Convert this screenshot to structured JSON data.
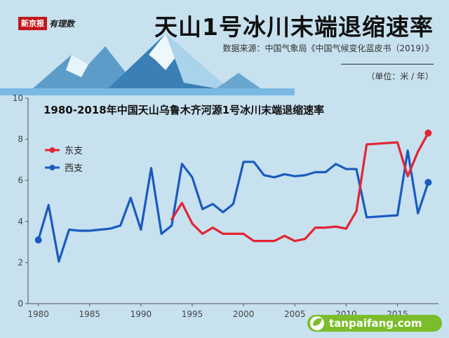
{
  "header": {
    "logo_text": "新京报",
    "logo_tail": "有理数",
    "title": "天山1号冰川末端退缩速率",
    "source": "数据来源：中国气象局《中国气候变化蓝皮书（2019）》",
    "units": "（单位：米 / 年）"
  },
  "watermark": {
    "text": "tanpaifang.com"
  },
  "colors": {
    "east": "#e32434",
    "west": "#1a5bbf",
    "background": "#c7e1ef"
  },
  "chart_data": {
    "type": "line",
    "title": "1980-2018年中国天山乌鲁木齐河源1号冰川末端退缩速率",
    "xlabel": "",
    "ylabel": "",
    "xlim": [
      1979,
      2019
    ],
    "ylim": [
      0,
      10
    ],
    "x_ticks": [
      1980,
      1985,
      1990,
      1995,
      2000,
      2005,
      2010,
      2015
    ],
    "y_ticks": [
      0,
      2,
      4,
      6,
      8,
      10
    ],
    "grid": false,
    "legend_position": "upper-left",
    "series": [
      {
        "name": "东支",
        "color": "#e32434",
        "x": [
          1993,
          1994,
          1995,
          1996,
          1997,
          1998,
          1999,
          2000,
          2001,
          2002,
          2003,
          2004,
          2005,
          2006,
          2007,
          2008,
          2009,
          2010,
          2011,
          2012,
          2015,
          2016,
          2017,
          2018
        ],
        "y": [
          4.1,
          4.9,
          3.9,
          3.4,
          3.7,
          3.4,
          3.4,
          3.4,
          3.05,
          3.05,
          3.05,
          3.3,
          3.05,
          3.15,
          3.7,
          3.7,
          3.75,
          3.65,
          4.5,
          7.75,
          7.85,
          6.2,
          7.4,
          8.3
        ]
      },
      {
        "name": "西支",
        "color": "#1a5bbf",
        "x": [
          1980,
          1981,
          1982,
          1983,
          1984,
          1985,
          1986,
          1987,
          1988,
          1989,
          1990,
          1991,
          1992,
          1993,
          1994,
          1995,
          1996,
          1997,
          1998,
          1999,
          2000,
          2001,
          2002,
          2003,
          2004,
          2005,
          2006,
          2007,
          2008,
          2009,
          2010,
          2011,
          2012,
          2015,
          2016,
          2017,
          2018
        ],
        "y": [
          3.1,
          4.8,
          2.05,
          3.6,
          3.55,
          3.55,
          3.6,
          3.65,
          3.8,
          5.15,
          3.6,
          6.6,
          3.4,
          3.8,
          6.8,
          6.15,
          4.6,
          4.85,
          4.45,
          4.85,
          6.9,
          6.9,
          6.25,
          6.15,
          6.3,
          6.2,
          6.25,
          6.4,
          6.4,
          6.8,
          6.55,
          6.55,
          4.2,
          4.3,
          7.45,
          4.4,
          5.9
        ]
      }
    ]
  }
}
